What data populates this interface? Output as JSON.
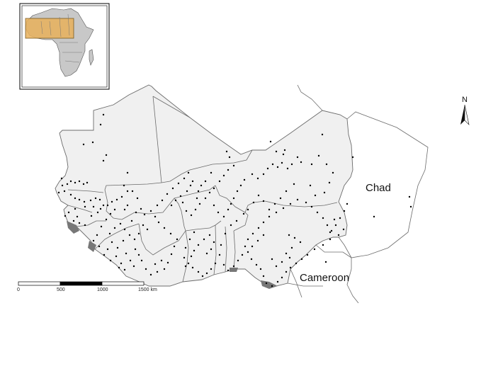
{
  "labels": {
    "chad": "Chad",
    "cameroon": "Cameroon",
    "north": "N"
  },
  "scale_bar": {
    "ticks": [
      "0",
      "500",
      "1000",
      "1500 km"
    ]
  },
  "colors": {
    "west_africa_fill": "#f0f0f0",
    "country_border": "#6b6b6b",
    "point": "#000000",
    "wetland": "#777777",
    "inset_africa": "#c8c8c8",
    "inset_highlight": "#e8b05a"
  },
  "points": [
    [
      146,
      162
    ],
    [
      142,
      176
    ],
    [
      118,
      204
    ],
    [
      131,
      201
    ],
    [
      150,
      219
    ],
    [
      146,
      227
    ],
    [
      180,
      244
    ],
    [
      87,
      252
    ],
    [
      88,
      262
    ],
    [
      91,
      270
    ],
    [
      83,
      272
    ],
    [
      95,
      260
    ],
    [
      100,
      256
    ],
    [
      106,
      258
    ],
    [
      112,
      256
    ],
    [
      118,
      260
    ],
    [
      123,
      258
    ],
    [
      100,
      275
    ],
    [
      106,
      280
    ],
    [
      112,
      282
    ],
    [
      119,
      285
    ],
    [
      128,
      283
    ],
    [
      135,
      280
    ],
    [
      141,
      282
    ],
    [
      146,
      290
    ],
    [
      132,
      292
    ],
    [
      120,
      292
    ],
    [
      106,
      295
    ],
    [
      97,
      300
    ],
    [
      92,
      305
    ],
    [
      104,
      312
    ],
    [
      112,
      315
    ],
    [
      120,
      318
    ],
    [
      109,
      306
    ],
    [
      129,
      305
    ],
    [
      138,
      300
    ],
    [
      142,
      295
    ],
    [
      152,
      290
    ],
    [
      158,
      285
    ],
    [
      165,
      282
    ],
    [
      172,
      278
    ],
    [
      180,
      270
    ],
    [
      175,
      262
    ],
    [
      187,
      270
    ],
    [
      194,
      280
    ],
    [
      199,
      295
    ],
    [
      204,
      303
    ],
    [
      202,
      318
    ],
    [
      208,
      324
    ],
    [
      196,
      330
    ],
    [
      190,
      338
    ],
    [
      183,
      332
    ],
    [
      174,
      340
    ],
    [
      166,
      350
    ],
    [
      158,
      342
    ],
    [
      152,
      352
    ],
    [
      147,
      360
    ],
    [
      156,
      368
    ],
    [
      164,
      362
    ],
    [
      171,
      372
    ],
    [
      178,
      358
    ],
    [
      184,
      368
    ],
    [
      189,
      376
    ],
    [
      176,
      381
    ],
    [
      168,
      378
    ],
    [
      191,
      352
    ],
    [
      196,
      360
    ],
    [
      200,
      368
    ],
    [
      206,
      380
    ],
    [
      213,
      388
    ],
    [
      222,
      384
    ],
    [
      232,
      380
    ],
    [
      237,
      371
    ],
    [
      228,
      368
    ],
    [
      219,
      373
    ],
    [
      242,
      359
    ],
    [
      246,
      348
    ],
    [
      250,
      338
    ],
    [
      241,
      330
    ],
    [
      232,
      322
    ],
    [
      224,
      314
    ],
    [
      219,
      306
    ],
    [
      213,
      298
    ],
    [
      222,
      290
    ],
    [
      229,
      283
    ],
    [
      236,
      274
    ],
    [
      244,
      266
    ],
    [
      252,
      259
    ],
    [
      260,
      252
    ],
    [
      266,
      244
    ],
    [
      272,
      256
    ],
    [
      269,
      262
    ],
    [
      264,
      270
    ],
    [
      255,
      277
    ],
    [
      248,
      283
    ],
    [
      242,
      290
    ],
    [
      258,
      286
    ],
    [
      263,
      298
    ],
    [
      270,
      304
    ],
    [
      276,
      296
    ],
    [
      282,
      288
    ],
    [
      290,
      280
    ],
    [
      296,
      272
    ],
    [
      302,
      266
    ],
    [
      310,
      256
    ],
    [
      316,
      248
    ],
    [
      322,
      240
    ],
    [
      330,
      234
    ],
    [
      324,
      222
    ],
    [
      320,
      214
    ],
    [
      298,
      244
    ],
    [
      290,
      256
    ],
    [
      284,
      262
    ],
    [
      280,
      270
    ],
    [
      278,
      280
    ],
    [
      302,
      290
    ],
    [
      308,
      300
    ],
    [
      316,
      306
    ],
    [
      322,
      296
    ],
    [
      326,
      288
    ],
    [
      330,
      280
    ],
    [
      335,
      270
    ],
    [
      340,
      262
    ],
    [
      345,
      254
    ],
    [
      356,
      246
    ],
    [
      364,
      252
    ],
    [
      372,
      246
    ],
    [
      378,
      238
    ],
    [
      385,
      232
    ],
    [
      392,
      236
    ],
    [
      398,
      230
    ],
    [
      406,
      238
    ],
    [
      412,
      232
    ],
    [
      400,
      218
    ],
    [
      402,
      212
    ],
    [
      420,
      222
    ],
    [
      425,
      229
    ],
    [
      390,
      214
    ],
    [
      382,
      200
    ],
    [
      450,
      220
    ],
    [
      455,
      190
    ],
    [
      440,
      232
    ],
    [
      438,
      262
    ],
    [
      445,
      276
    ],
    [
      458,
      272
    ],
    [
      465,
      258
    ],
    [
      470,
      244
    ],
    [
      461,
      232
    ],
    [
      415,
      260
    ],
    [
      404,
      270
    ],
    [
      396,
      280
    ],
    [
      388,
      288
    ],
    [
      380,
      296
    ],
    [
      372,
      284
    ],
    [
      365,
      276
    ],
    [
      358,
      286
    ],
    [
      350,
      296
    ],
    [
      344,
      302
    ],
    [
      334,
      312
    ],
    [
      326,
      318
    ],
    [
      318,
      330
    ],
    [
      312,
      346
    ],
    [
      310,
      360
    ],
    [
      304,
      372
    ],
    [
      298,
      380
    ],
    [
      292,
      386
    ],
    [
      286,
      390
    ],
    [
      280,
      384
    ],
    [
      272,
      378
    ],
    [
      266,
      372
    ],
    [
      270,
      362
    ],
    [
      274,
      354
    ],
    [
      280,
      346
    ],
    [
      288,
      338
    ],
    [
      296,
      332
    ],
    [
      292,
      358
    ],
    [
      298,
      352
    ],
    [
      302,
      342
    ],
    [
      274,
      328
    ],
    [
      268,
      338
    ],
    [
      262,
      350
    ],
    [
      260,
      364
    ],
    [
      262,
      376
    ],
    [
      316,
      374
    ],
    [
      322,
      382
    ],
    [
      330,
      376
    ],
    [
      336,
      368
    ],
    [
      342,
      360
    ],
    [
      346,
      348
    ],
    [
      350,
      338
    ],
    [
      357,
      330
    ],
    [
      365,
      322
    ],
    [
      372,
      314
    ],
    [
      380,
      306
    ],
    [
      390,
      300
    ],
    [
      400,
      294
    ],
    [
      410,
      288
    ],
    [
      420,
      282
    ],
    [
      432,
      286
    ],
    [
      440,
      292
    ],
    [
      448,
      300
    ],
    [
      456,
      308
    ],
    [
      462,
      318
    ],
    [
      468,
      326
    ],
    [
      474,
      318
    ],
    [
      480,
      308
    ],
    [
      486,
      298
    ],
    [
      490,
      288
    ],
    [
      485,
      324
    ],
    [
      478,
      332
    ],
    [
      466,
      338
    ],
    [
      456,
      346
    ],
    [
      444,
      352
    ],
    [
      434,
      360
    ],
    [
      426,
      366
    ],
    [
      418,
      372
    ],
    [
      410,
      378
    ],
    [
      404,
      384
    ],
    [
      398,
      392
    ],
    [
      392,
      398
    ],
    [
      384,
      404
    ],
    [
      376,
      400
    ],
    [
      372,
      390
    ],
    [
      368,
      380
    ],
    [
      362,
      374
    ],
    [
      355,
      366
    ],
    [
      350,
      356
    ],
    [
      356,
      348
    ],
    [
      364,
      340
    ],
    [
      372,
      332
    ],
    [
      408,
      332
    ],
    [
      416,
      336
    ],
    [
      424,
      342
    ],
    [
      412,
      350
    ],
    [
      404,
      358
    ],
    [
      409,
      364
    ],
    [
      384,
      366
    ],
    [
      390,
      376
    ],
    [
      398,
      370
    ],
    [
      460,
      370
    ],
    [
      466,
      328
    ],
    [
      472,
      310
    ],
    [
      528,
      306
    ],
    [
      580,
      292
    ],
    [
      578,
      278
    ],
    [
      498,
      222
    ],
    [
      180,
      290
    ],
    [
      176,
      296
    ],
    [
      162,
      296
    ],
    [
      156,
      302
    ],
    [
      150,
      310
    ],
    [
      143,
      320
    ],
    [
      137,
      332
    ],
    [
      132,
      340
    ],
    [
      140,
      348
    ],
    [
      155,
      330
    ],
    [
      162,
      322
    ],
    [
      170,
      316
    ],
    [
      176,
      324
    ],
    [
      186,
      312
    ],
    [
      192,
      300
    ]
  ]
}
